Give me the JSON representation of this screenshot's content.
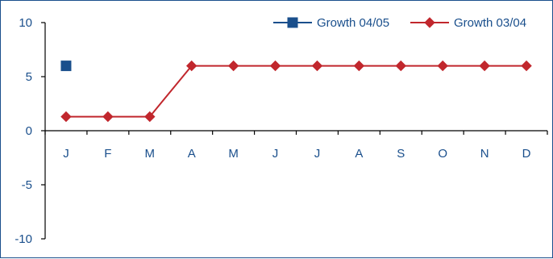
{
  "chart_data": {
    "type": "line",
    "title": "",
    "xlabel": "",
    "ylabel": "",
    "categories": [
      "J",
      "F",
      "M",
      "A",
      "M",
      "J",
      "J",
      "A",
      "S",
      "O",
      "N",
      "D"
    ],
    "ylim": [
      -10,
      10
    ],
    "yticks": [
      10,
      5,
      0,
      -5,
      -10
    ],
    "grid": false,
    "legend_position": "top-right",
    "series": [
      {
        "name": "Growth 04/05",
        "color": "#1a4f8c",
        "marker": "square",
        "values": [
          6,
          null,
          null,
          null,
          null,
          null,
          null,
          null,
          null,
          null,
          null,
          null
        ]
      },
      {
        "name": "Growth 03/04",
        "color": "#c1272d",
        "marker": "diamond",
        "values": [
          1.3,
          1.3,
          1.3,
          6,
          6,
          6,
          6,
          6,
          6,
          6,
          6,
          6
        ]
      }
    ]
  }
}
